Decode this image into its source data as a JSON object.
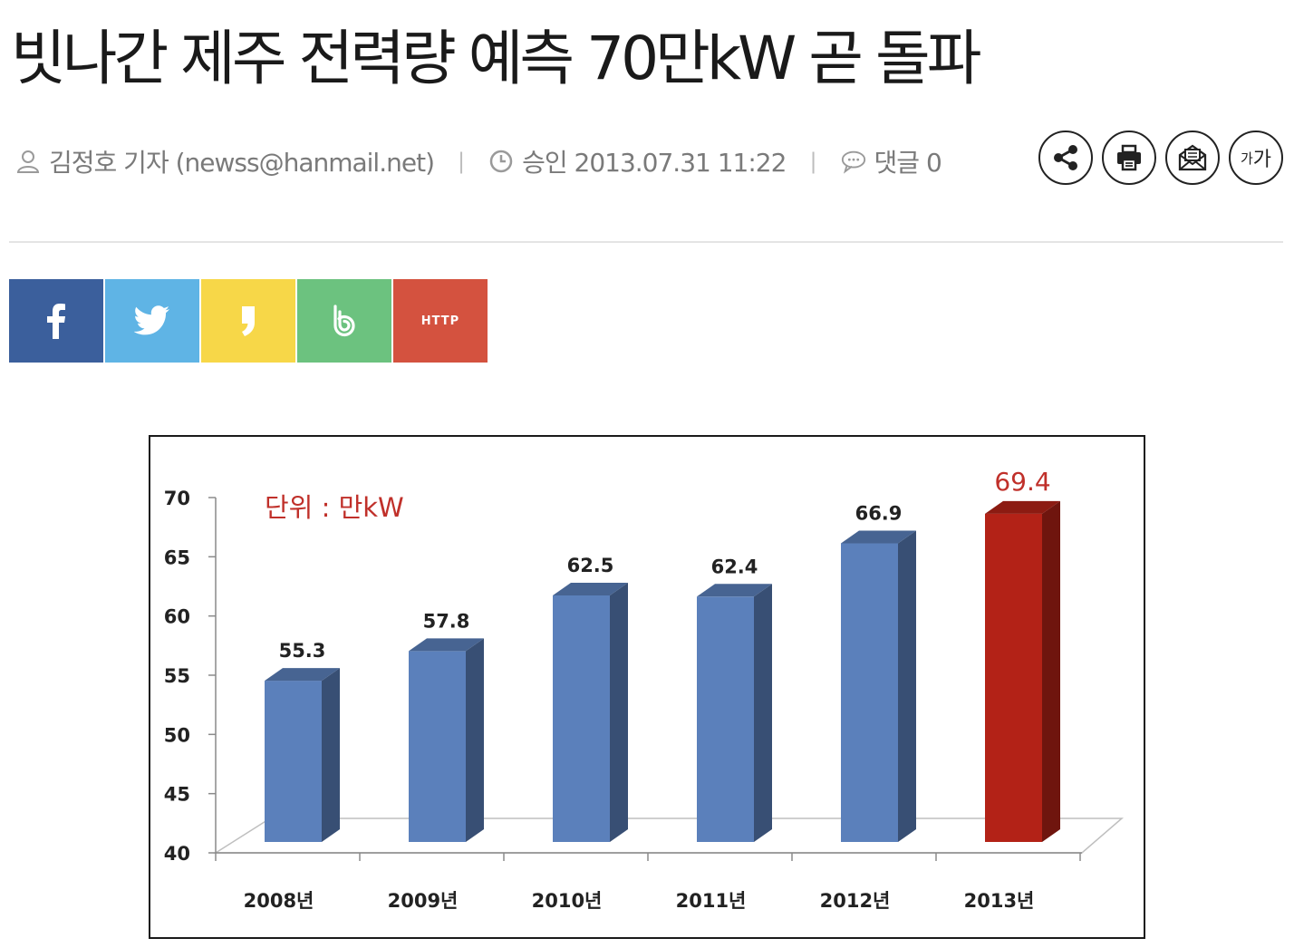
{
  "article": {
    "headline": "빗나간 제주 전력량 예측 70만kW 곧 돌파",
    "author": "김정호 기자 (newss@hanmail.net)",
    "approved": "승인 2013.07.31 11:22",
    "comments": "댓글 0",
    "separator": "|"
  },
  "tools": {
    "font_size_small": "가",
    "font_size_big": "가"
  },
  "share": {
    "url_label": "HTTP"
  },
  "colors": {
    "facebook": "#3b5f9c",
    "twitter": "#5fb4e5",
    "kakaostory": "#f7d748",
    "band": "#6cc27f",
    "url": "#d4523f",
    "bar": "#5b80bb",
    "bar_highlight": "#b32217",
    "unit_label": "#c0302a"
  },
  "chart_data": {
    "type": "bar",
    "title": "",
    "unit_label": "단위 : 만kW",
    "categories": [
      "2008년",
      "2009년",
      "2010년",
      "2011년",
      "2012년",
      "2013년"
    ],
    "values": [
      55.3,
      57.8,
      62.5,
      62.4,
      66.9,
      69.4
    ],
    "data_labels": [
      "55.3",
      "57.8",
      "62.5",
      "62.4",
      "66.9",
      "69.4"
    ],
    "highlight_index": 5,
    "ylim": [
      40,
      70
    ],
    "yticks": [
      "40",
      "45",
      "50",
      "55",
      "60",
      "65",
      "70"
    ],
    "xlabel": "",
    "ylabel": "",
    "grid": false,
    "legend": "none",
    "style": "3d-bar"
  }
}
